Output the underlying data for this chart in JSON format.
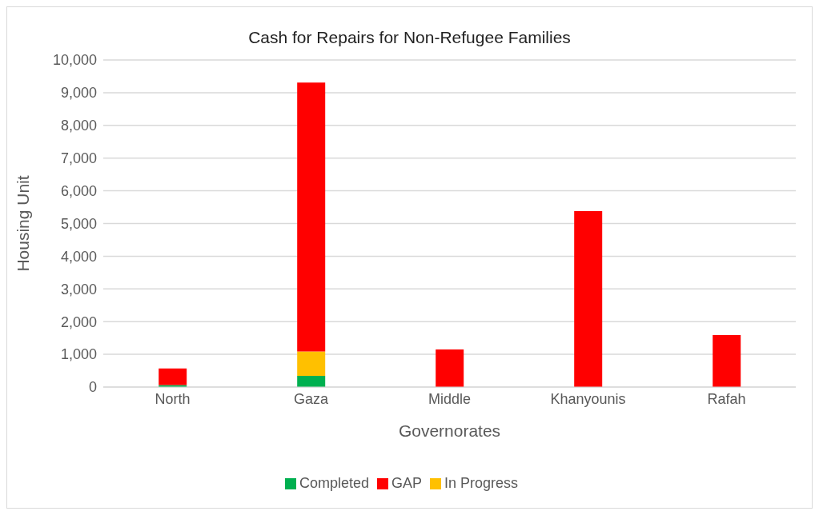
{
  "chart_data": {
    "type": "bar",
    "title": "Cash for Repairs for Non-Refugee Families",
    "xlabel": "Governorates",
    "ylabel": "Housing Unit",
    "categories": [
      "North",
      "Gaza",
      "Middle",
      "Khanyounis",
      "Rafah"
    ],
    "series": [
      {
        "name": "Completed",
        "color": "#00b050",
        "values": [
          60,
          340,
          0,
          0,
          0
        ]
      },
      {
        "name": "In Progress",
        "color": "#ffc000",
        "values": [
          0,
          750,
          0,
          0,
          0
        ]
      },
      {
        "name": "GAP",
        "color": "#ff0000",
        "values": [
          510,
          8220,
          1150,
          5380,
          1590
        ]
      }
    ],
    "stacked": true,
    "ylim": [
      0,
      10000
    ],
    "yticks": [
      0,
      {
        "value": 1000,
        "label": "1,000"
      },
      {
        "value": 2000,
        "label": "2,000"
      },
      {
        "value": 3000,
        "label": "3,000"
      },
      {
        "value": 4000,
        "label": "4,000"
      },
      {
        "value": 5000,
        "label": "5,000"
      },
      {
        "value": 6000,
        "label": "6,000"
      },
      {
        "value": 7000,
        "label": "7,000"
      },
      {
        "value": 8000,
        "label": "8,000"
      },
      {
        "value": 9000,
        "label": "9,000"
      },
      {
        "value": 10000,
        "label": "10,000"
      }
    ],
    "grid": "y",
    "legend": "bottom"
  }
}
